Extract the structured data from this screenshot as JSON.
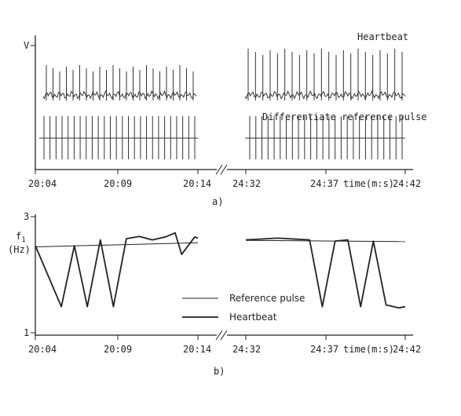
{
  "charts": {
    "a": {
      "panel_label": "a)",
      "ylabel": "V",
      "label_heartbeat": "Heartbeat",
      "label_reference": "Differentiate reference pulse",
      "x_ticks_left": [
        "20:04",
        "20:09",
        "20:14"
      ],
      "x_ticks_right": [
        "24:32",
        "24:37",
        "24:42"
      ],
      "xlabel": "time(m:s)"
    },
    "b": {
      "panel_label": "b)",
      "ylabel_sym": "f",
      "ylabel_sub": "1",
      "ylabel_unit": "(Hz)",
      "y_ticks": [
        "3",
        "1"
      ],
      "x_ticks_left": [
        "20:04",
        "20:09",
        "20:14"
      ],
      "x_ticks_right": [
        "24:32",
        "24:37",
        "24:42"
      ],
      "xlabel": "time(m:s)",
      "legend": [
        {
          "name": "Reference pulse",
          "style": "thin"
        },
        {
          "name": "Heartbeat",
          "style": "thick"
        }
      ]
    }
  },
  "chart_data": [
    {
      "type": "line",
      "panel": "a",
      "x_segments": [
        [
          "20:04",
          "20:14"
        ],
        [
          "24:32",
          "24:42"
        ]
      ],
      "axis_break": true,
      "series": [
        {
          "name": "Heartbeat",
          "style": "spike-train",
          "spikes_left": 23,
          "spikes_right": 22
        },
        {
          "name": "Differentiate reference pulse",
          "style": "pulse-train",
          "pulses_left": 26,
          "pulses_right": 26
        }
      ]
    },
    {
      "type": "line",
      "panel": "b",
      "ylim": [
        1,
        3
      ],
      "x_segments": [
        [
          "20:04",
          "20:14"
        ],
        [
          "24:32",
          "24:42"
        ]
      ],
      "axis_break": true,
      "series": [
        {
          "name": "Reference pulse",
          "left": {
            "x": [
              "20:04",
              "20:14"
            ],
            "y": [
              2.48,
              2.55
            ]
          },
          "right": {
            "x": [
              "24:32",
              "24:42"
            ],
            "y": [
              2.59,
              2.57
            ]
          }
        },
        {
          "name": "Heartbeat",
          "left": {
            "x": [
              "20:04",
              "20:05.6",
              "20:06.4",
              "20:07.2",
              "20:08",
              "20:08.8",
              "20:09.6",
              "20:10.4",
              "20:11.2",
              "20:12",
              "20:12.6",
              "20:13",
              "20:13.8",
              "20:14"
            ],
            "y": [
              2.5,
              1.45,
              2.5,
              1.45,
              2.6,
              1.45,
              2.62,
              2.66,
              2.6,
              2.65,
              2.72,
              2.35,
              2.65,
              2.63
            ]
          },
          "right": {
            "x": [
              "24:32",
              "24:34",
              "24:36",
              "24:36.8",
              "24:37.6",
              "24:38.4",
              "24:39.2",
              "24:40",
              "24:40.8",
              "24:41.6",
              "24:42"
            ],
            "y": [
              2.6,
              2.63,
              2.6,
              1.45,
              2.58,
              2.6,
              1.45,
              2.58,
              1.48,
              1.43,
              1.45
            ]
          }
        }
      ]
    }
  ]
}
